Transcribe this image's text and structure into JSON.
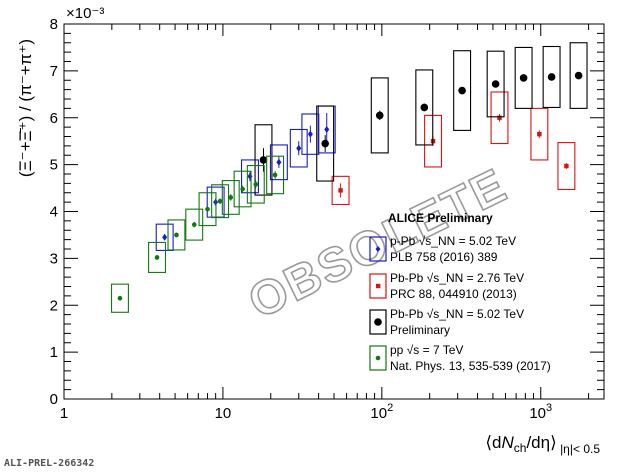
{
  "chart_data": {
    "type": "scatter",
    "title": "",
    "ylabel": "(Ξ⁻+Ξ̄⁺) / (π⁻+π⁺)",
    "y_multiplier": "×10⁻³",
    "xlabel": "⟨dN_ch/dη⟩ |η|< 0.5",
    "xscale": "log",
    "xlim": [
      1,
      2500
    ],
    "ylim": [
      0,
      8
    ],
    "x_tick_labels": [
      "1",
      "10",
      "10²",
      "10³"
    ],
    "y_tick_labels": [
      "0",
      "1",
      "2",
      "3",
      "4",
      "5",
      "6",
      "7",
      "8"
    ],
    "legend_header": "ALICE Preliminary",
    "legend_position": "right",
    "watermark": "OBSOLETE",
    "figure_tag": "ALI-PREL-266342",
    "series": [
      {
        "system": "p-Pb",
        "energy": "√s_NN = 5.02 TeV",
        "reference": "PLB 758 (2016) 389",
        "color": "#1a1acc",
        "marker": "diamond",
        "x": [
          4.3,
          9.0,
          14.8,
          22.5,
          30.0,
          35.5,
          45.0
        ],
        "y": [
          3.45,
          4.2,
          4.75,
          5.05,
          5.35,
          5.65,
          5.75
        ],
        "yerr": [
          0.06,
          0.08,
          0.1,
          0.12,
          0.15,
          0.18,
          0.35
        ],
        "sys": [
          0.28,
          0.32,
          0.35,
          0.37,
          0.4,
          0.43,
          0.5
        ]
      },
      {
        "system": "Pb-Pb",
        "energy": "√s_NN = 2.76 TeV",
        "reference": "PRC 88, 044910 (2013)",
        "color": "#dd1111",
        "marker": "square",
        "x": [
          55,
          210,
          550,
          980,
          1450
        ],
        "y": [
          4.45,
          5.5,
          6.0,
          5.65,
          4.97
        ],
        "yerr": [
          0.15,
          0.1,
          0.08,
          0.08,
          0.06
        ],
        "sys": [
          0.3,
          0.55,
          0.55,
          0.55,
          0.5
        ]
      },
      {
        "system": "Pb-Pb",
        "energy": "√s_NN = 5.02 TeV",
        "reference": "Preliminary",
        "color": "#000000",
        "marker": "circle",
        "x": [
          18,
          44,
          97,
          185,
          320,
          520,
          780,
          1170,
          1730
        ],
        "y": [
          5.1,
          5.45,
          6.05,
          6.22,
          6.58,
          6.72,
          6.85,
          6.87,
          6.9
        ],
        "yerr": [
          0.25,
          0.18,
          0.1,
          0.08,
          0.07,
          0.06,
          0.06,
          0.06,
          0.06
        ],
        "sys": [
          0.75,
          0.8,
          0.8,
          0.8,
          0.85,
          0.7,
          0.65,
          0.65,
          0.7
        ]
      },
      {
        "system": "pp",
        "energy": "√s = 7 TeV",
        "reference": "Nat. Phys. 13, 535-539 (2017)",
        "color": "#137713",
        "marker": "circle",
        "x": [
          2.25,
          3.85,
          5.1,
          6.6,
          8.0,
          9.6,
          11.2,
          13.3,
          16.1,
          21.3
        ],
        "y": [
          2.15,
          3.02,
          3.5,
          3.72,
          4.05,
          4.22,
          4.3,
          4.48,
          4.58,
          4.78
        ],
        "yerr": [
          0.05,
          0.05,
          0.05,
          0.06,
          0.06,
          0.06,
          0.07,
          0.07,
          0.08,
          0.08
        ],
        "sys": [
          0.3,
          0.32,
          0.32,
          0.33,
          0.35,
          0.35,
          0.36,
          0.38,
          0.4,
          0.4
        ]
      }
    ]
  }
}
